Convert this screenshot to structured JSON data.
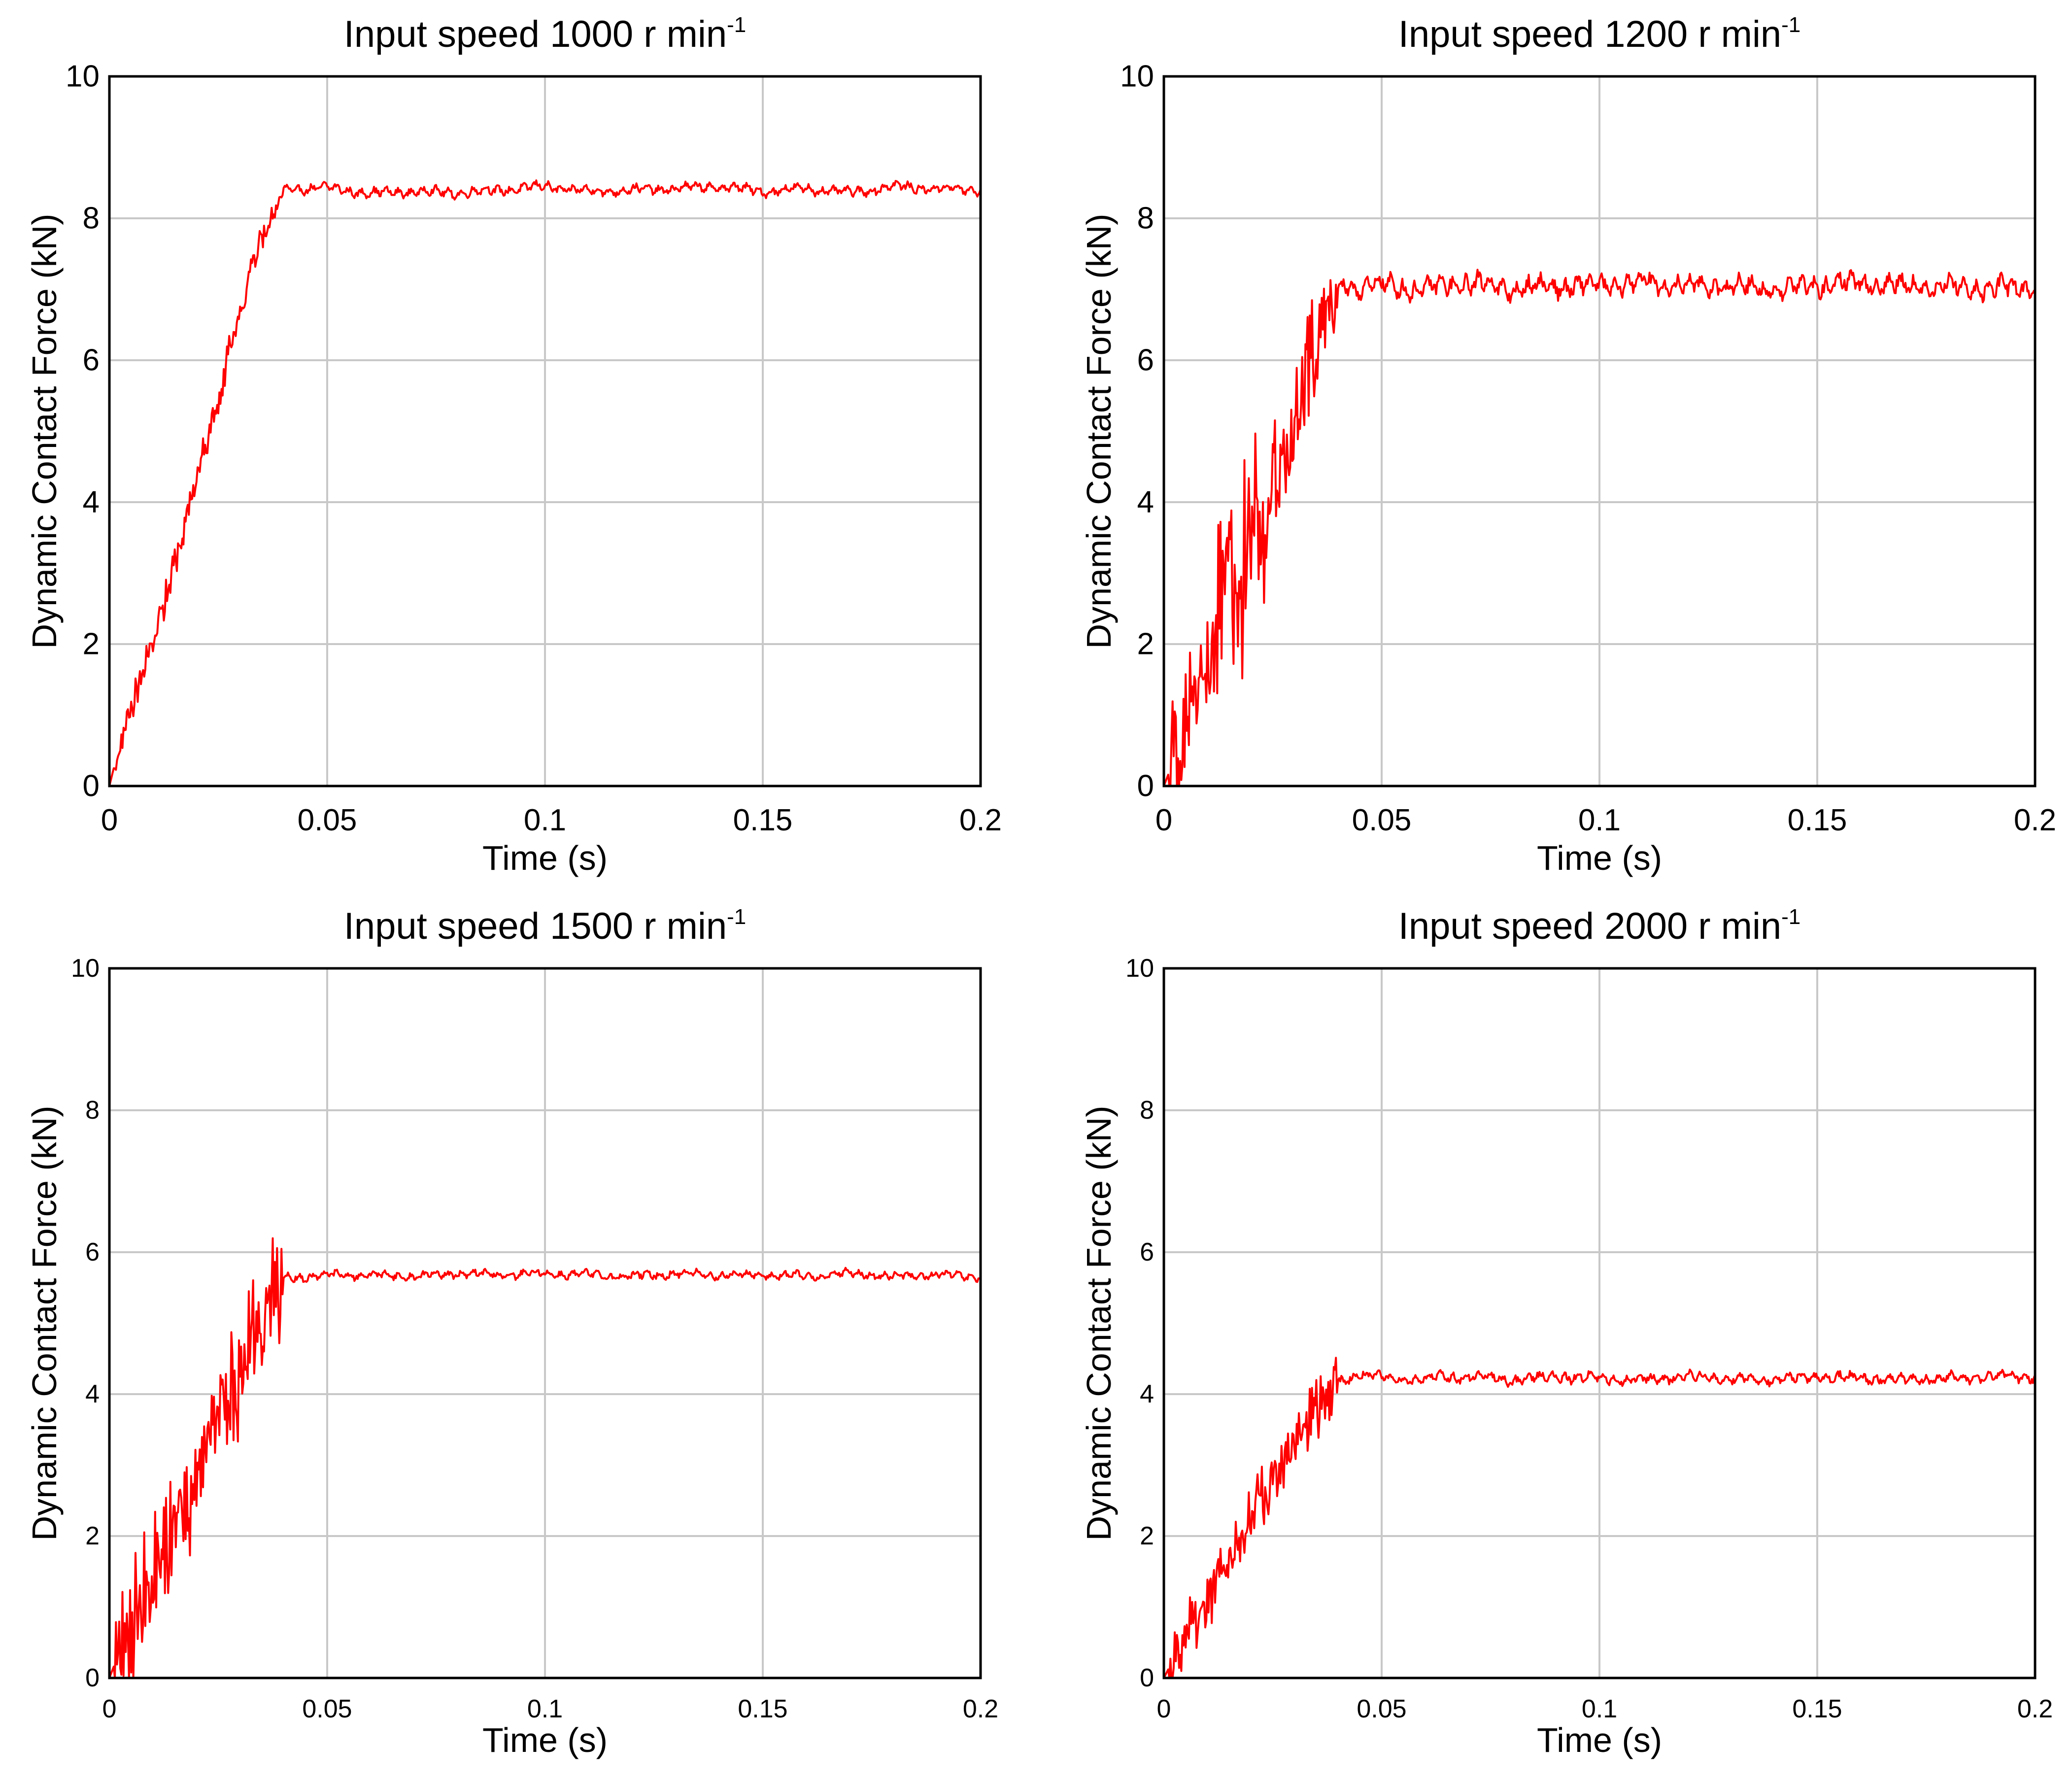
{
  "figure_title": "",
  "chart_data": [
    {
      "type": "line",
      "title": "Input speed 1000 r min",
      "title_superscript": "-1",
      "xlabel": "Time (s)",
      "ylabel": "Dynamic Contact Force (kN)",
      "xlim": [
        0,
        0.2
      ],
      "ylim": [
        0,
        10
      ],
      "xticks": [
        0,
        0.05,
        0.1,
        0.15,
        0.2
      ],
      "xtick_labels": [
        "0",
        "0.05",
        "0.1",
        "0.15",
        "0.2"
      ],
      "yticks": [
        0,
        2,
        4,
        6,
        8,
        10
      ],
      "ytick_labels": [
        "0",
        "2",
        "4",
        "6",
        "8",
        "10"
      ],
      "grid": true,
      "series": [
        {
          "name": "Dynamic contact force",
          "color": "#ff0000",
          "ramp_end_time": 0.04,
          "steady_value": 8.4,
          "steady_amplitude": 0.08,
          "early_spike_amplitude": 0.25,
          "x": [
            0,
            0.002,
            0.004,
            0.006,
            0.008,
            0.01,
            0.015,
            0.02,
            0.025,
            0.03,
            0.035,
            0.038,
            0.04,
            0.045,
            0.05,
            0.06,
            0.07,
            0.08,
            0.09,
            0.1,
            0.11,
            0.12,
            0.13,
            0.14,
            0.15,
            0.16,
            0.17,
            0.18,
            0.19,
            0.2
          ],
          "y": [
            0,
            0.5,
            0.9,
            1.3,
            1.7,
            2.0,
            3.1,
            4.3,
            5.5,
            6.7,
            7.7,
            8.2,
            8.4,
            8.42,
            8.43,
            8.35,
            8.38,
            8.36,
            8.4,
            8.45,
            8.38,
            8.4,
            8.42,
            8.45,
            8.38,
            8.42,
            8.36,
            8.45,
            8.42,
            8.4
          ]
        }
      ]
    },
    {
      "type": "line",
      "title": "Input speed 1200 r min",
      "title_superscript": "-1",
      "xlabel": "Time (s)",
      "ylabel": "Dynamic Contact Force (kN)",
      "xlim": [
        0,
        0.2
      ],
      "ylim": [
        0,
        10
      ],
      "xticks": [
        0,
        0.05,
        0.1,
        0.15,
        0.2
      ],
      "xtick_labels": [
        "0",
        "0.05",
        "0.1",
        "0.15",
        "0.2"
      ],
      "yticks": [
        0,
        2,
        4,
        6,
        8,
        10
      ],
      "ytick_labels": [
        "0",
        "2",
        "4",
        "6",
        "8",
        "10"
      ],
      "grid": true,
      "series": [
        {
          "name": "Dynamic contact force",
          "color": "#ff0000",
          "ramp_end_time": 0.04,
          "steady_value": 7.05,
          "steady_amplitude": 0.18,
          "early_spike_amplitude": 1.0,
          "x": [
            0,
            0.005,
            0.01,
            0.015,
            0.02,
            0.025,
            0.03,
            0.035,
            0.04,
            0.045,
            0.05,
            0.06,
            0.07,
            0.08,
            0.09,
            0.1,
            0.11,
            0.12,
            0.13,
            0.14,
            0.15,
            0.16,
            0.17,
            0.18,
            0.19,
            0.2
          ],
          "y": [
            0,
            0.8,
            1.7,
            2.6,
            3.3,
            4.2,
            5.1,
            6.2,
            7.0,
            7.05,
            7.05,
            7.0,
            7.1,
            7.0,
            7.05,
            7.05,
            7.1,
            7.05,
            7.05,
            7.0,
            7.05,
            7.1,
            7.05,
            7.05,
            7.0,
            7.05
          ]
        }
      ]
    },
    {
      "type": "line",
      "title": "Input speed 1500 r min",
      "title_superscript": "-1",
      "xlabel": "Time (s)",
      "ylabel": "Dynamic Contact Force (kN)",
      "xlim": [
        0,
        0.2
      ],
      "ylim": [
        0,
        10
      ],
      "xticks": [
        0,
        0.05,
        0.1,
        0.15,
        0.2
      ],
      "xtick_labels": [
        "0",
        "0.05",
        "0.1",
        "0.15",
        "0.2"
      ],
      "yticks": [
        0,
        2,
        4,
        6,
        8,
        10
      ],
      "ytick_labels": [
        "0",
        "2",
        "4",
        "6",
        "8",
        "10"
      ],
      "grid": true,
      "series": [
        {
          "name": "Dynamic contact force",
          "color": "#ff0000",
          "ramp_end_time": 0.04,
          "steady_value": 5.68,
          "steady_amplitude": 0.07,
          "early_spike_amplitude": 0.9,
          "x": [
            0,
            0.005,
            0.01,
            0.015,
            0.02,
            0.025,
            0.03,
            0.035,
            0.04,
            0.045,
            0.05,
            0.06,
            0.07,
            0.08,
            0.09,
            0.1,
            0.11,
            0.12,
            0.13,
            0.14,
            0.15,
            0.16,
            0.17,
            0.18,
            0.19,
            0.2
          ],
          "y": [
            0,
            0.8,
            1.4,
            2.0,
            2.8,
            3.6,
            4.3,
            5.0,
            5.65,
            5.65,
            5.68,
            5.68,
            5.66,
            5.7,
            5.68,
            5.7,
            5.68,
            5.66,
            5.7,
            5.68,
            5.68,
            5.66,
            5.7,
            5.66,
            5.68,
            5.65
          ]
        }
      ]
    },
    {
      "type": "line",
      "title": "Input speed 2000 r min",
      "title_superscript": "-1",
      "xlabel": "Time (s)",
      "ylabel": "Dynamic Contact Force (kN)",
      "xlim": [
        0,
        0.2
      ],
      "ylim": [
        0,
        10
      ],
      "xticks": [
        0,
        0.05,
        0.1,
        0.15,
        0.2
      ],
      "xtick_labels": [
        "0",
        "0.05",
        "0.1",
        "0.15",
        "0.2"
      ],
      "yticks": [
        0,
        2,
        4,
        6,
        8,
        10
      ],
      "ytick_labels": [
        "0",
        "2",
        "4",
        "6",
        "8",
        "10"
      ],
      "grid": true,
      "series": [
        {
          "name": "Dynamic contact force",
          "color": "#ff0000",
          "ramp_end_time": 0.04,
          "steady_value": 4.22,
          "steady_amplitude": 0.09,
          "early_spike_amplitude": 0.45,
          "x": [
            0,
            0.005,
            0.01,
            0.015,
            0.02,
            0.025,
            0.03,
            0.035,
            0.04,
            0.045,
            0.05,
            0.06,
            0.07,
            0.08,
            0.09,
            0.1,
            0.11,
            0.12,
            0.13,
            0.14,
            0.15,
            0.16,
            0.17,
            0.18,
            0.19,
            0.2
          ],
          "y": [
            0,
            0.6,
            1.1,
            1.7,
            2.3,
            2.8,
            3.3,
            3.8,
            4.15,
            4.3,
            4.22,
            4.22,
            4.25,
            4.2,
            4.25,
            4.22,
            4.2,
            4.25,
            4.22,
            4.2,
            4.25,
            4.22,
            4.2,
            4.22,
            4.25,
            4.25
          ]
        }
      ]
    }
  ]
}
